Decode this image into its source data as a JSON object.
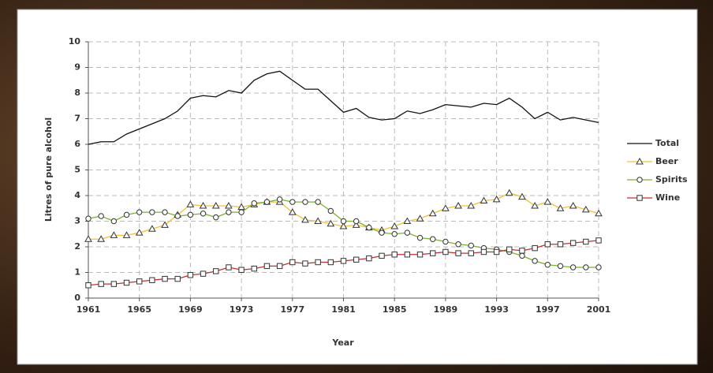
{
  "chart_data": {
    "type": "line",
    "xlabel": "Year",
    "ylabel": "Litres of pure alcohol",
    "x": [
      1961,
      1962,
      1963,
      1964,
      1965,
      1966,
      1967,
      1968,
      1969,
      1970,
      1971,
      1972,
      1973,
      1974,
      1975,
      1976,
      1977,
      1978,
      1979,
      1980,
      1981,
      1982,
      1983,
      1984,
      1985,
      1986,
      1987,
      1988,
      1989,
      1990,
      1991,
      1992,
      1993,
      1994,
      1995,
      1996,
      1997,
      1998,
      1999,
      2000,
      2001
    ],
    "xlim": [
      1961,
      2001
    ],
    "xticks": [
      1961,
      1965,
      1969,
      1973,
      1977,
      1981,
      1985,
      1989,
      1993,
      1997,
      2001
    ],
    "ylim": [
      0,
      10
    ],
    "yticks": [
      0,
      1,
      2,
      3,
      4,
      5,
      6,
      7,
      8,
      9,
      10
    ],
    "grid": true,
    "legend": "right",
    "series": [
      {
        "name": "Total",
        "color": "#111111",
        "marker": "none",
        "values": [
          6.0,
          6.1,
          6.1,
          6.4,
          6.6,
          6.8,
          7.0,
          7.3,
          7.8,
          7.9,
          7.85,
          8.1,
          8.0,
          8.5,
          8.75,
          8.85,
          8.5,
          8.15,
          8.15,
          7.7,
          7.25,
          7.4,
          7.05,
          6.95,
          7.0,
          7.3,
          7.2,
          7.35,
          7.55,
          7.5,
          7.45,
          7.6,
          7.55,
          7.8,
          7.45,
          7.0,
          7.25,
          6.95,
          7.05,
          6.95,
          6.85
        ]
      },
      {
        "name": "Beer",
        "color": "#f0c030",
        "marker": "triangle",
        "values": [
          2.3,
          2.3,
          2.45,
          2.45,
          2.55,
          2.7,
          2.85,
          3.25,
          3.65,
          3.6,
          3.6,
          3.6,
          3.55,
          3.65,
          3.75,
          3.75,
          3.35,
          3.05,
          3.0,
          2.9,
          2.8,
          2.85,
          2.75,
          2.65,
          2.8,
          3.0,
          3.1,
          3.3,
          3.5,
          3.6,
          3.6,
          3.8,
          3.85,
          4.1,
          3.95,
          3.6,
          3.75,
          3.5,
          3.6,
          3.45,
          3.3
        ]
      },
      {
        "name": "Spirits",
        "color": "#7ab030",
        "marker": "circle",
        "values": [
          3.1,
          3.2,
          3.0,
          3.25,
          3.35,
          3.35,
          3.35,
          3.2,
          3.25,
          3.3,
          3.15,
          3.35,
          3.35,
          3.7,
          3.75,
          3.85,
          3.75,
          3.75,
          3.75,
          3.4,
          3.0,
          3.0,
          2.75,
          2.55,
          2.5,
          2.55,
          2.35,
          2.3,
          2.2,
          2.1,
          2.05,
          1.95,
          1.9,
          1.8,
          1.65,
          1.45,
          1.3,
          1.25,
          1.2,
          1.2,
          1.2
        ]
      },
      {
        "name": "Wine",
        "color": "#c03030",
        "marker": "square",
        "values": [
          0.5,
          0.55,
          0.55,
          0.6,
          0.65,
          0.7,
          0.75,
          0.75,
          0.9,
          0.95,
          1.05,
          1.2,
          1.1,
          1.15,
          1.25,
          1.25,
          1.4,
          1.35,
          1.4,
          1.4,
          1.45,
          1.5,
          1.55,
          1.65,
          1.7,
          1.7,
          1.7,
          1.75,
          1.8,
          1.75,
          1.75,
          1.8,
          1.8,
          1.9,
          1.85,
          1.95,
          2.1,
          2.1,
          2.15,
          2.2,
          2.25
        ]
      }
    ]
  }
}
